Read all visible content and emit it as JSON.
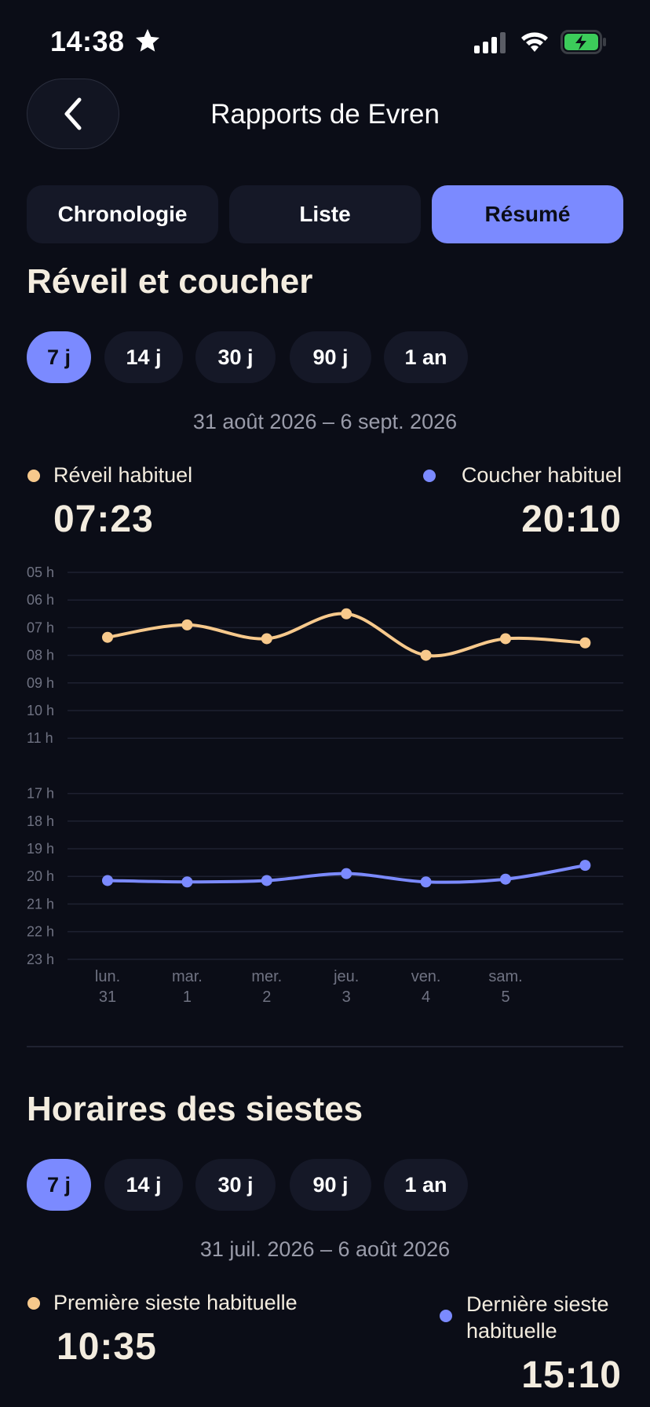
{
  "status_bar": {
    "time": "14:38"
  },
  "header": {
    "title": "Rapports de Evren",
    "back_icon": "chevron-left-icon"
  },
  "tabs": [
    {
      "label": "Chronologie",
      "active": false
    },
    {
      "label": "Liste",
      "active": false
    },
    {
      "label": "Résumé",
      "active": true
    }
  ],
  "wake_section": {
    "title": "Réveil et coucher",
    "ranges": [
      {
        "label": "7 j",
        "active": true
      },
      {
        "label": "14 j",
        "active": false
      },
      {
        "label": "30 j",
        "active": false
      },
      {
        "label": "90 j",
        "active": false
      },
      {
        "label": "1 an",
        "active": false
      }
    ],
    "date_range": "31 août 2026 – 6 sept. 2026",
    "wake_label": "Réveil habituel",
    "wake_value": "07:23",
    "bed_label": "Coucher habituel",
    "bed_value": "20:10"
  },
  "colors": {
    "wake": "#f7c98c",
    "bed": "#7b8aff",
    "accent": "#7b8aff"
  },
  "chart_data": {
    "type": "line",
    "y_ticks": [
      "05 h",
      "06 h",
      "07 h",
      "08 h",
      "09 h",
      "10 h",
      "11 h",
      "17 h",
      "18 h",
      "19 h",
      "20 h",
      "21 h",
      "22 h",
      "23 h"
    ],
    "x_ticks": [
      {
        "day": "lun.",
        "date": "31"
      },
      {
        "day": "mar.",
        "date": "1"
      },
      {
        "day": "mer.",
        "date": "2"
      },
      {
        "day": "jeu.",
        "date": "3"
      },
      {
        "day": "ven.",
        "date": "4"
      },
      {
        "day": "sam.",
        "date": "5"
      },
      {
        "day": "",
        "date": ""
      }
    ],
    "series": [
      {
        "name": "Réveil habituel",
        "color": "#f7c98c",
        "values": [
          7.35,
          6.9,
          7.4,
          6.5,
          8.0,
          7.4,
          7.55
        ]
      },
      {
        "name": "Coucher habituel",
        "color": "#7b8aff",
        "values": [
          20.15,
          20.2,
          20.15,
          19.9,
          20.2,
          20.1,
          19.6
        ]
      }
    ]
  },
  "nap_section": {
    "title": "Horaires des siestes",
    "ranges": [
      {
        "label": "7 j",
        "active": true
      },
      {
        "label": "14 j",
        "active": false
      },
      {
        "label": "30 j",
        "active": false
      },
      {
        "label": "90 j",
        "active": false
      },
      {
        "label": "1 an",
        "active": false
      }
    ],
    "date_range": "31 juil. 2026 – 6 août 2026",
    "first_label": "Première sieste habituelle",
    "first_value": "10:35",
    "last_label_line1": "Dernière sieste",
    "last_label_line2": "habituelle",
    "last_value": "15:10"
  }
}
